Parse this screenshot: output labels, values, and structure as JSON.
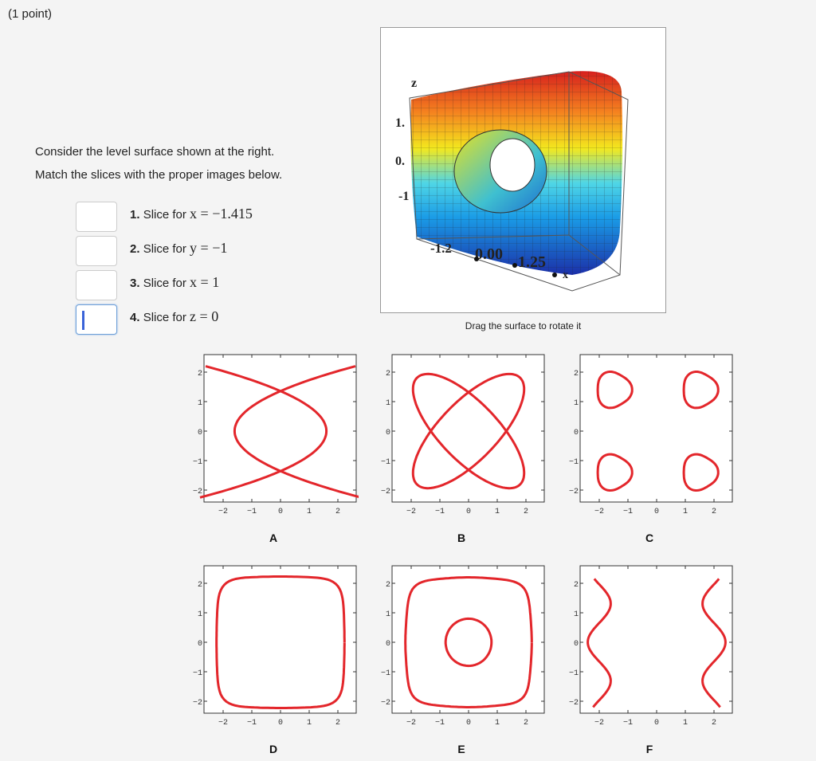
{
  "header": {
    "points": "(1 point)"
  },
  "instructions": [
    "Consider the level surface shown at the right.",
    "Match the slices with the proper images below."
  ],
  "slices": [
    {
      "number": "1.",
      "text": "Slice for",
      "math": "x = −1.415"
    },
    {
      "number": "2.",
      "text": "Slice for",
      "math": "y = −1"
    },
    {
      "number": "3.",
      "text": "Slice for",
      "math": "x = 1"
    },
    {
      "number": "4.",
      "text": "Slice for",
      "math": "z = 0"
    }
  ],
  "figure": {
    "axis_labels": [
      "z",
      "1.",
      "0.",
      "-1",
      "-1.2",
      "0.00",
      "1.25",
      "x"
    ],
    "caption": "Drag the surface to rotate it"
  },
  "plots": [
    {
      "letter": "A",
      "xticks": [
        "−2",
        "−1",
        "0",
        "1",
        "2"
      ],
      "yticks": [
        "2",
        "1",
        "0",
        "−1",
        "−2"
      ]
    },
    {
      "letter": "B",
      "xticks": [
        "−2",
        "−1",
        "0",
        "1",
        "2"
      ],
      "yticks": [
        "2",
        "1",
        "0",
        "−1",
        "−2"
      ]
    },
    {
      "letter": "C",
      "xticks": [
        "−2",
        "−1",
        "0",
        "1",
        "2"
      ],
      "yticks": [
        "2",
        "1",
        "0",
        "−1",
        "−2"
      ]
    },
    {
      "letter": "D",
      "xticks": [
        "−2",
        "−1",
        "0",
        "1",
        "2"
      ],
      "yticks": [
        "2",
        "1",
        "0",
        "−1",
        "−2"
      ]
    },
    {
      "letter": "E",
      "xticks": [
        "−2",
        "−1",
        "0",
        "1",
        "2"
      ],
      "yticks": [
        "2",
        "1",
        "0",
        "−1",
        "−2"
      ]
    },
    {
      "letter": "F",
      "xticks": [
        "−2",
        "−1",
        "0",
        "1",
        "2"
      ],
      "yticks": [
        "2",
        "1",
        "0",
        "−1",
        "−2"
      ]
    }
  ]
}
